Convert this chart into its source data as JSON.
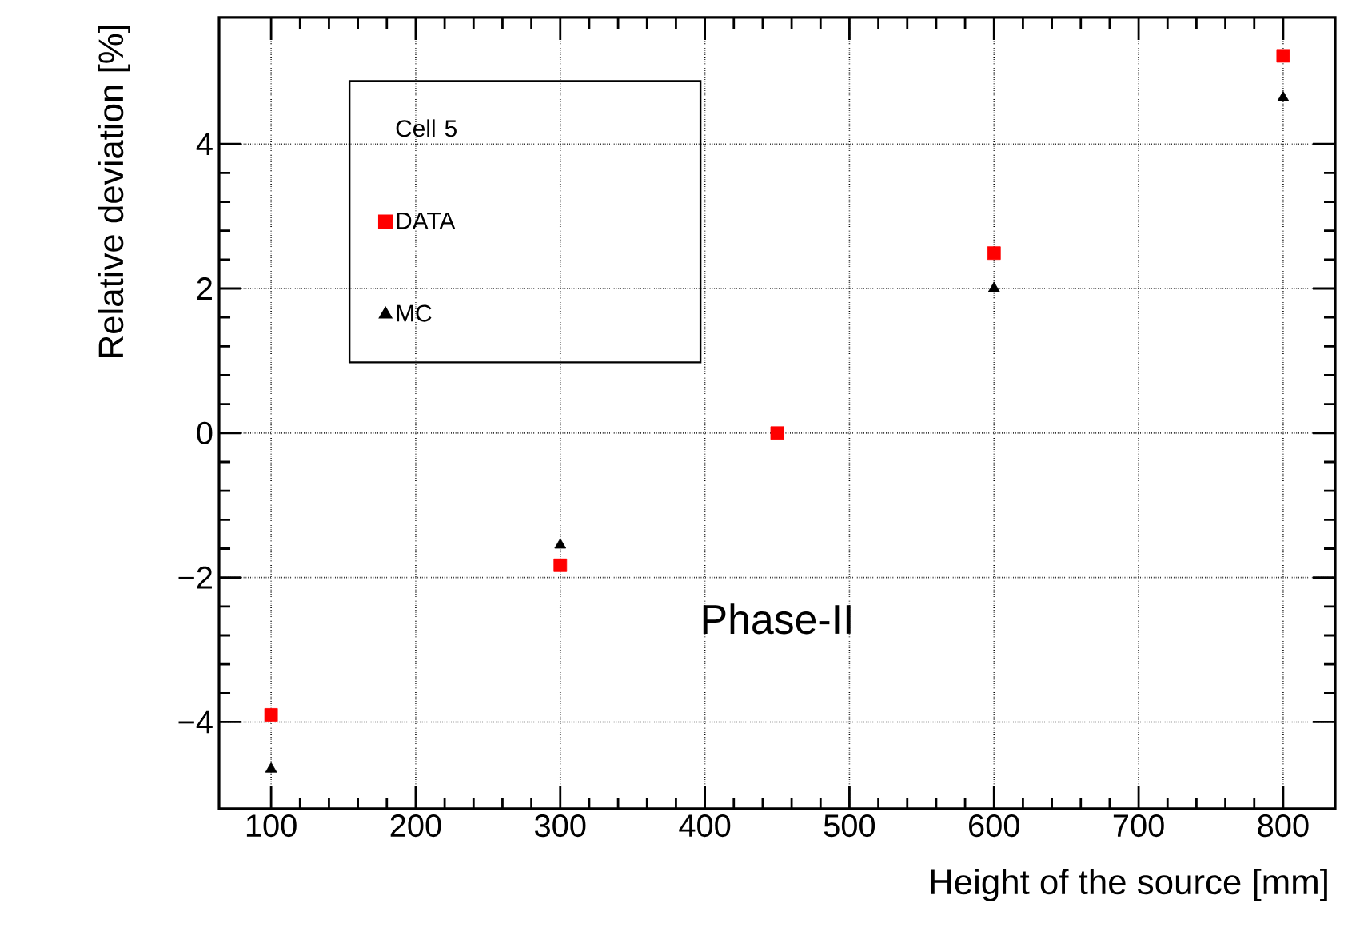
{
  "chart_data": {
    "type": "scatter",
    "xlabel": "Height of the source [mm]",
    "ylabel": "Relative deviation [%]",
    "legend_title": "Cell 5",
    "legend": "top left",
    "grid": true,
    "x": [
      100,
      300,
      450,
      600,
      800
    ],
    "series": [
      {
        "name": "DATA",
        "color": "#ff0000",
        "marker": "square",
        "values": [
          -3.9,
          -1.83,
          0,
          2.49,
          5.22
        ]
      },
      {
        "name": "MC",
        "color": "#000000",
        "marker": "triangle",
        "values": [
          -4.65,
          -1.55,
          null,
          2.0,
          4.64
        ]
      }
    ],
    "xlim": [
      64,
      836
    ],
    "ylim": [
      -5.2,
      5.75
    ],
    "xticks": [
      100,
      200,
      300,
      400,
      500,
      600,
      700,
      800
    ],
    "yticks": [
      {
        "value": -4,
        "label": "−4"
      },
      {
        "value": -2,
        "label": "−2"
      },
      0,
      2,
      4
    ],
    "annotations": [
      "Phase-II"
    ]
  }
}
